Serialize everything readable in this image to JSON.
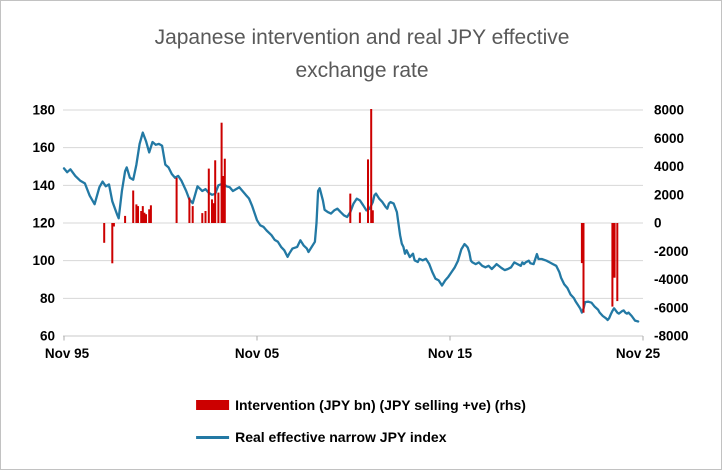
{
  "title_lines": [
    "Japanese intervention and real JPY effective",
    "exchange rate"
  ],
  "colors": {
    "bar": "#cc0000",
    "line": "#2379a4",
    "title_text": "#595959",
    "gridline": "#d7d7d7",
    "axis_line": "#c9c9c9",
    "tick_text": "#000000"
  },
  "chart_data": {
    "type": "bar+line combo",
    "title": "Japanese intervention and real JPY effective exchange rate",
    "grid": "horizontal only",
    "legend_position": "bottom",
    "x_axis": {
      "labels": [
        "Nov 95",
        "Nov 05",
        "Nov 15",
        "Nov 25"
      ],
      "unit": "months since Nov 1995",
      "range_months": [
        0,
        360
      ]
    },
    "left_axis": {
      "ticks": [
        180,
        160,
        140,
        120,
        100,
        80,
        60
      ],
      "min": 60,
      "max": 180,
      "applies_to": "Real effective narrow JPY index"
    },
    "right_axis": {
      "ticks": [
        8000,
        6000,
        4000,
        2000,
        0,
        -2000,
        -4000,
        -6000,
        -8000
      ],
      "min": -8000,
      "max": 8000,
      "applies_to": "Intervention (JPY bn)"
    },
    "series": [
      {
        "name": "Intervention (JPY bn) (JPY selling +ve) (rhs)",
        "type": "bar",
        "axis": "right",
        "color": "#cc0000",
        "points": [
          {
            "date": "Dec 97",
            "m": 25,
            "value": -1400
          },
          {
            "date": "Apr 98",
            "m": 30,
            "value": -2850
          },
          {
            "date": "Jun 98",
            "m": 31,
            "value": -250
          },
          {
            "date": "Jan 99",
            "m": 38,
            "value": 500
          },
          {
            "date": "Jun 99",
            "m": 43,
            "value": 2300
          },
          {
            "date": "Jul 99",
            "m": 45,
            "value": 1320
          },
          {
            "date": "Sep 99",
            "m": 46,
            "value": 1200
          },
          {
            "date": "Nov 99",
            "m": 48,
            "value": 850
          },
          {
            "date": "Jan 00",
            "m": 49,
            "value": 1200
          },
          {
            "date": "Feb 00",
            "m": 50,
            "value": 730
          },
          {
            "date": "Mar 00",
            "m": 51,
            "value": 620
          },
          {
            "date": "Apr 00",
            "m": 53,
            "value": 970
          },
          {
            "date": "Jun 00",
            "m": 54,
            "value": 1250
          },
          {
            "date": "Sep 01",
            "m": 70,
            "value": 3200
          },
          {
            "date": "May 02",
            "m": 78,
            "value": 1800
          },
          {
            "date": "Jun 02",
            "m": 80,
            "value": 1200
          },
          {
            "date": "Jan 03",
            "m": 86,
            "value": 700
          },
          {
            "date": "Mar 03",
            "m": 88,
            "value": 850
          },
          {
            "date": "May 03",
            "m": 90,
            "value": 3850
          },
          {
            "date": "Jul 03",
            "m": 92,
            "value": 1670
          },
          {
            "date": "Aug 03",
            "m": 93,
            "value": 1400
          },
          {
            "date": "Sep 03",
            "m": 94,
            "value": 4440
          },
          {
            "date": "Nov 03",
            "m": 96,
            "value": 2150
          },
          {
            "date": "Jan 04",
            "m": 98,
            "value": 7100
          },
          {
            "date": "Feb 04",
            "m": 99,
            "value": 3330
          },
          {
            "date": "Mar 04",
            "m": 100,
            "value": 4550
          },
          {
            "date": "Sep 10",
            "m": 178,
            "value": 2080
          },
          {
            "date": "Mar 11",
            "m": 184,
            "value": 750
          },
          {
            "date": "Aug 11",
            "m": 189,
            "value": 4500
          },
          {
            "date": "Oct 11",
            "m": 191,
            "value": 8070
          },
          {
            "date": "Nov 11",
            "m": 192,
            "value": 900
          },
          {
            "date": "Sep 22",
            "m": 322,
            "value": -2840
          },
          {
            "date": "Oct 22",
            "m": 323,
            "value": -6350
          },
          {
            "date": "Apr 24",
            "m": 341,
            "value": -5920
          },
          {
            "date": "May 24",
            "m": 342,
            "value": -3870,
            "w": 3
          },
          {
            "date": "Jul 24",
            "m": 344,
            "value": -5530
          }
        ]
      },
      {
        "name": "Real effective narrow JPY index",
        "type": "line",
        "axis": "left",
        "color": "#2379a4",
        "points_m_value": [
          [
            0,
            149
          ],
          [
            2,
            147
          ],
          [
            4,
            148.5
          ],
          [
            7,
            145
          ],
          [
            10,
            142.5
          ],
          [
            13,
            141
          ],
          [
            16,
            134.5
          ],
          [
            19,
            130
          ],
          [
            22,
            139
          ],
          [
            24,
            142
          ],
          [
            26,
            139.5
          ],
          [
            28,
            140.5
          ],
          [
            30,
            131.5
          ],
          [
            33,
            124.5
          ],
          [
            34,
            122.5
          ],
          [
            36,
            137
          ],
          [
            38,
            147.5
          ],
          [
            39,
            149.5
          ],
          [
            41,
            144
          ],
          [
            43,
            143
          ],
          [
            45,
            151
          ],
          [
            47,
            162
          ],
          [
            49,
            168
          ],
          [
            51,
            163.5
          ],
          [
            53,
            157.5
          ],
          [
            55,
            163
          ],
          [
            57,
            161.5
          ],
          [
            59,
            162
          ],
          [
            61,
            161
          ],
          [
            63,
            151
          ],
          [
            65,
            149.5
          ],
          [
            67,
            146
          ],
          [
            69,
            144
          ],
          [
            71,
            145
          ],
          [
            73,
            142.5
          ],
          [
            76,
            137
          ],
          [
            78,
            132.5
          ],
          [
            80,
            130.5
          ],
          [
            83,
            139.5
          ],
          [
            86,
            137
          ],
          [
            88,
            138
          ],
          [
            90,
            136
          ],
          [
            92,
            135
          ],
          [
            94,
            135.5
          ],
          [
            96,
            140
          ],
          [
            99,
            141
          ],
          [
            101,
            139.5
          ],
          [
            103,
            139
          ],
          [
            105,
            137
          ],
          [
            107,
            138
          ],
          [
            109,
            139
          ],
          [
            111,
            137
          ],
          [
            113,
            135
          ],
          [
            115,
            133
          ],
          [
            117,
            129
          ],
          [
            119,
            124
          ],
          [
            120,
            121.5
          ],
          [
            122,
            118.8
          ],
          [
            124,
            118
          ],
          [
            126,
            116
          ],
          [
            129,
            113.5
          ],
          [
            131,
            111
          ],
          [
            133,
            110
          ],
          [
            135,
            107.3
          ],
          [
            137,
            105.5
          ],
          [
            139,
            102
          ],
          [
            140,
            103.7
          ],
          [
            142,
            106.4
          ],
          [
            145,
            107.3
          ],
          [
            147,
            110.8
          ],
          [
            149,
            108.1
          ],
          [
            151,
            106.4
          ],
          [
            152,
            104.6
          ],
          [
            154,
            107.3
          ],
          [
            156,
            110
          ],
          [
            157,
            120
          ],
          [
            158,
            137
          ],
          [
            159,
            138.5
          ],
          [
            161,
            132
          ],
          [
            162,
            127
          ],
          [
            164,
            125.8
          ],
          [
            166,
            125
          ],
          [
            168,
            126.7
          ],
          [
            170,
            127.6
          ],
          [
            172,
            125.8
          ],
          [
            174,
            124.1
          ],
          [
            176,
            123.2
          ],
          [
            178,
            125.8
          ],
          [
            180,
            130.3
          ],
          [
            182,
            132.9
          ],
          [
            184,
            132
          ],
          [
            186,
            129.4
          ],
          [
            188,
            126.7
          ],
          [
            190,
            127.6
          ],
          [
            192,
            131.1
          ],
          [
            193,
            134.7
          ],
          [
            194,
            135.6
          ],
          [
            196,
            132.9
          ],
          [
            198,
            131.1
          ],
          [
            200,
            128.5
          ],
          [
            201,
            127.6
          ],
          [
            202,
            130.3
          ],
          [
            203,
            131.1
          ],
          [
            205,
            130.3
          ],
          [
            207,
            125.8
          ],
          [
            208,
            119.6
          ],
          [
            209,
            113.5
          ],
          [
            210,
            109
          ],
          [
            211,
            107.3
          ],
          [
            212,
            103.7
          ],
          [
            213,
            105.5
          ],
          [
            215,
            101.9
          ],
          [
            217,
            103.7
          ],
          [
            218,
            100.2
          ],
          [
            220,
            99.3
          ],
          [
            221,
            101
          ],
          [
            223,
            100.2
          ],
          [
            225,
            101
          ],
          [
            227,
            98.4
          ],
          [
            229,
            94
          ],
          [
            231,
            90.4
          ],
          [
            233,
            89.5
          ],
          [
            235,
            86.8
          ],
          [
            237,
            89.5
          ],
          [
            239,
            91.5
          ],
          [
            241,
            94
          ],
          [
            243,
            96.5
          ],
          [
            245,
            100
          ],
          [
            247,
            106
          ],
          [
            249,
            108.8
          ],
          [
            250,
            108
          ],
          [
            251,
            107
          ],
          [
            252,
            104.4
          ],
          [
            253,
            100
          ],
          [
            254,
            99.1
          ],
          [
            256,
            98.2
          ],
          [
            258,
            99.1
          ],
          [
            260,
            97.3
          ],
          [
            262,
            96.5
          ],
          [
            264,
            97.3
          ],
          [
            266,
            95.6
          ],
          [
            268,
            97.3
          ],
          [
            269,
            98.2
          ],
          [
            272,
            96.1
          ],
          [
            274,
            95
          ],
          [
            276,
            95.6
          ],
          [
            278,
            96.5
          ],
          [
            280,
            99.1
          ],
          [
            282,
            98.2
          ],
          [
            284,
            97.3
          ],
          [
            285,
            99.1
          ],
          [
            286,
            98.2
          ],
          [
            287,
            99.1
          ],
          [
            289,
            100
          ],
          [
            290,
            98.6
          ],
          [
            292,
            98.2
          ],
          [
            294,
            103.5
          ],
          [
            295,
            100.9
          ],
          [
            297,
            100.9
          ],
          [
            300,
            100
          ],
          [
            302,
            99.1
          ],
          [
            304,
            98.2
          ],
          [
            306,
            97.3
          ],
          [
            308,
            93.8
          ],
          [
            309,
            91
          ],
          [
            311,
            87.5
          ],
          [
            313,
            85.5
          ],
          [
            315,
            82
          ],
          [
            317,
            80.2
          ],
          [
            318,
            78.5
          ],
          [
            320,
            75.9
          ],
          [
            321,
            74.5
          ],
          [
            322,
            72.4
          ],
          [
            323,
            74.5
          ],
          [
            324,
            78
          ],
          [
            326,
            78.2
          ],
          [
            328,
            77.7
          ],
          [
            330,
            75.5
          ],
          [
            332,
            74
          ],
          [
            333,
            72.5
          ],
          [
            335,
            70.6
          ],
          [
            337,
            69.4
          ],
          [
            338,
            68.5
          ],
          [
            339,
            69.5
          ],
          [
            340,
            71.5
          ],
          [
            341,
            73.3
          ],
          [
            342,
            74.7
          ],
          [
            343,
            73.6
          ],
          [
            344,
            72.4
          ],
          [
            345,
            71.9
          ],
          [
            347,
            73.2
          ],
          [
            348,
            73.6
          ],
          [
            349,
            72.4
          ],
          [
            350,
            71.9
          ],
          [
            351,
            72.4
          ],
          [
            353,
            70.6
          ],
          [
            355,
            68.2
          ],
          [
            357,
            67.7
          ]
        ]
      }
    ]
  },
  "legend": {
    "items": [
      {
        "label": "Intervention (JPY bn) (JPY selling +ve) (rhs)",
        "swatch": "red-bar"
      },
      {
        "label": "Real effective narrow JPY index",
        "swatch": "blue-line"
      }
    ]
  }
}
